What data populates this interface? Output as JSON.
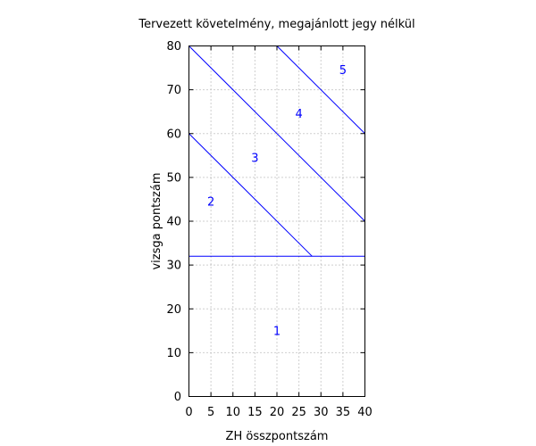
{
  "chart_data": {
    "type": "line",
    "title": "Tervezett követelmény, megajánlott jegy nélkül",
    "xlabel": "ZH összpontszám",
    "ylabel": "vizsga pontszám",
    "xlim": [
      0,
      40
    ],
    "ylim": [
      0,
      80
    ],
    "xticks": [
      0,
      5,
      10,
      15,
      20,
      25,
      30,
      35,
      40
    ],
    "yticks": [
      0,
      10,
      20,
      30,
      40,
      50,
      60,
      70,
      80
    ],
    "grid": true,
    "color": "#0000ff",
    "series": [
      {
        "x": [
          0,
          40
        ],
        "y": [
          32,
          32
        ]
      },
      {
        "x": [
          0,
          28
        ],
        "y": [
          60,
          32
        ]
      },
      {
        "x": [
          0,
          40
        ],
        "y": [
          80,
          40
        ]
      },
      {
        "x": [
          20,
          40
        ],
        "y": [
          80,
          60
        ]
      }
    ],
    "annotations": [
      {
        "text": "1",
        "x": 20,
        "y": 15
      },
      {
        "text": "2",
        "x": 5,
        "y": 44.5
      },
      {
        "text": "3",
        "x": 15,
        "y": 54.5
      },
      {
        "text": "4",
        "x": 25,
        "y": 64.5
      },
      {
        "text": "5",
        "x": 35,
        "y": 74.5
      }
    ]
  }
}
